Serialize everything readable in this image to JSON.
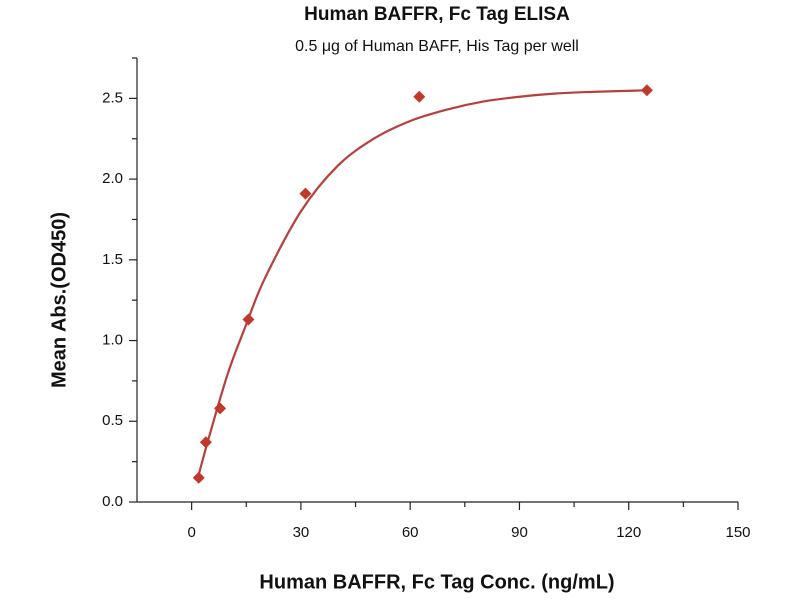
{
  "chart_data": {
    "type": "scatter",
    "title": "Human BAFFR, Fc Tag ELISA",
    "subtitle": "0.5 μg of Human BAFF, His Tag per well",
    "xlabel": "Human BAFFR, Fc Tag Conc. (ng/mL)",
    "ylabel": "Mean Abs.(OD450)",
    "x": [
      1.95,
      3.9,
      7.8,
      15.6,
      31.25,
      62.5,
      125
    ],
    "values": [
      0.15,
      0.37,
      0.58,
      1.13,
      1.91,
      2.51,
      2.55
    ],
    "color": "#c0392b",
    "fit": {
      "x": [
        1.95,
        5,
        10,
        15,
        20,
        30,
        40,
        50,
        60,
        70,
        80,
        90,
        100,
        110,
        125
      ],
      "values": [
        0.17,
        0.42,
        0.8,
        1.1,
        1.38,
        1.8,
        2.08,
        2.25,
        2.36,
        2.43,
        2.48,
        2.51,
        2.53,
        2.54,
        2.55
      ],
      "color": "#b5403c"
    },
    "xlim": [
      -15,
      150
    ],
    "ylim": [
      0,
      2.75
    ],
    "xticks": [
      0,
      30,
      60,
      90,
      120,
      150
    ],
    "yticks": [
      {
        "value": 0,
        "label": "0.0"
      },
      0.5,
      {
        "value": 1,
        "label": "1.0"
      },
      1.5,
      {
        "value": 2,
        "label": "2.0"
      },
      2.5
    ],
    "xminorticks": [
      15,
      45,
      75,
      105,
      135
    ],
    "yminorticks": [
      0.25,
      0.75,
      1.25,
      1.75,
      2.25,
      2.75
    ]
  }
}
